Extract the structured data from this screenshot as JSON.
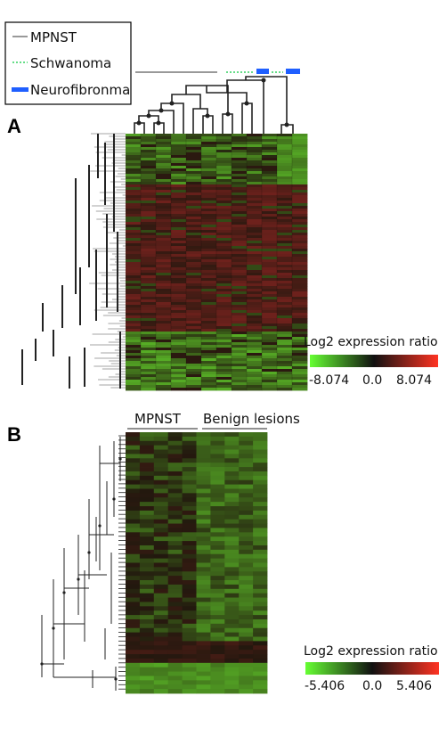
{
  "legend": {
    "items": [
      {
        "label": "MPNST",
        "style": "solid-thin",
        "color": "#333333"
      },
      {
        "label": "Schwanoma",
        "style": "dotted",
        "color": "#66dd88"
      },
      {
        "label": "Neurofibronma",
        "style": "solid-thick",
        "color": "#1f5fff"
      }
    ]
  },
  "panel_a": {
    "letter": "A",
    "scale": {
      "title": "Log2 expression ratio",
      "min_label": "-8.074",
      "mid_label": "0.0",
      "max_label": "8.074"
    },
    "heatmap": {
      "columns": 12,
      "rows": 245,
      "low_color": "#5ccc2a",
      "mid_color": "#1a1208",
      "high_color": "#cc2a1a"
    }
  },
  "panel_b": {
    "letter": "B",
    "group_labels": [
      "MPNST",
      "Benign lesions"
    ],
    "scale": {
      "title": "Log2 expression ratio",
      "min_label": "-5.406",
      "mid_label": "0.0",
      "max_label": "5.406"
    },
    "heatmap": {
      "columns": 10,
      "rows": 60
    }
  },
  "colors": {
    "scale_low": "#66ff33",
    "scale_mid": "#111111",
    "scale_high": "#ff3322"
  }
}
